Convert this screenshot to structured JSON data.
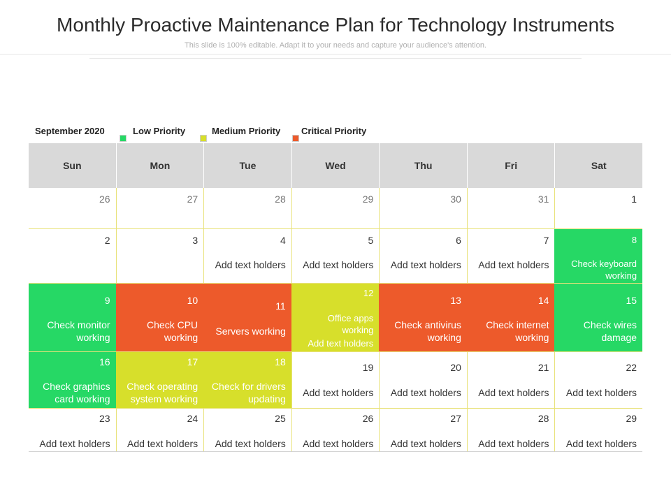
{
  "header": {
    "title": "Monthly Proactive Maintenance Plan for Technology Instruments",
    "subtitle": "This slide is 100% editable. Adapt it to your needs and capture your audience's attention."
  },
  "legend": {
    "month": "September 2020",
    "items": [
      {
        "label": "Low Priority",
        "color": "#26d865"
      },
      {
        "label": "Medium Priority",
        "color": "#d7df2b"
      },
      {
        "label": "Critical Priority",
        "color": "#ed5a2b"
      }
    ]
  },
  "colors": {
    "green": "#26d865",
    "red": "#ed5a2b",
    "yellow": "#d7df2b",
    "header": "#d9d9d9"
  },
  "calendar": {
    "days": [
      "Sun",
      "Mon",
      "Tue",
      "Wed",
      "Thu",
      "Fri",
      "Sat"
    ],
    "weeks": [
      {
        "cells": [
          {
            "day": "26",
            "text": ""
          },
          {
            "day": "27",
            "text": ""
          },
          {
            "day": "28",
            "text": ""
          },
          {
            "day": "29",
            "text": ""
          },
          {
            "day": "30",
            "text": ""
          },
          {
            "day": "31",
            "text": ""
          },
          {
            "day": "1",
            "text": ""
          }
        ]
      },
      {
        "cells": [
          {
            "day": "2",
            "text": ""
          },
          {
            "day": "3",
            "text": ""
          },
          {
            "day": "4",
            "text": "Add text holders"
          },
          {
            "day": "5",
            "text": "Add text holders"
          },
          {
            "day": "6",
            "text": "Add text holders"
          },
          {
            "day": "7",
            "text": "Add text holders"
          },
          {
            "day": "8",
            "text": "Check keyboard working"
          }
        ]
      },
      {
        "cells": [
          {
            "day": "9",
            "text": "Check monitor working"
          },
          {
            "day": "10",
            "text": "Check CPU working"
          },
          {
            "day": "11",
            "text": "Servers working"
          },
          {
            "day": "12",
            "text": "Office apps working",
            "text2": "Add text holders"
          },
          {
            "day": "13",
            "text": "Check antivirus working"
          },
          {
            "day": "14",
            "text": "Check internet working"
          },
          {
            "day": "15",
            "text": "Check wires damage"
          }
        ]
      },
      {
        "cells": [
          {
            "day": "16",
            "text": "Check graphics card working"
          },
          {
            "day": "17",
            "text": "Check operating system working"
          },
          {
            "day": "18",
            "text": "Check for drivers updating"
          },
          {
            "day": "19",
            "text": "Add text holders"
          },
          {
            "day": "20",
            "text": "Add text holders"
          },
          {
            "day": "21",
            "text": "Add text holders"
          },
          {
            "day": "22",
            "text": "Add text holders"
          }
        ]
      },
      {
        "cells": [
          {
            "day": "23",
            "text": "Add text holders"
          },
          {
            "day": "24",
            "text": "Add text holders"
          },
          {
            "day": "25",
            "text": "Add text holders"
          },
          {
            "day": "26",
            "text": "Add text holders"
          },
          {
            "day": "27",
            "text": "Add text holders"
          },
          {
            "day": "28",
            "text": "Add text holders"
          },
          {
            "day": "29",
            "text": "Add text holders"
          }
        ]
      }
    ]
  }
}
